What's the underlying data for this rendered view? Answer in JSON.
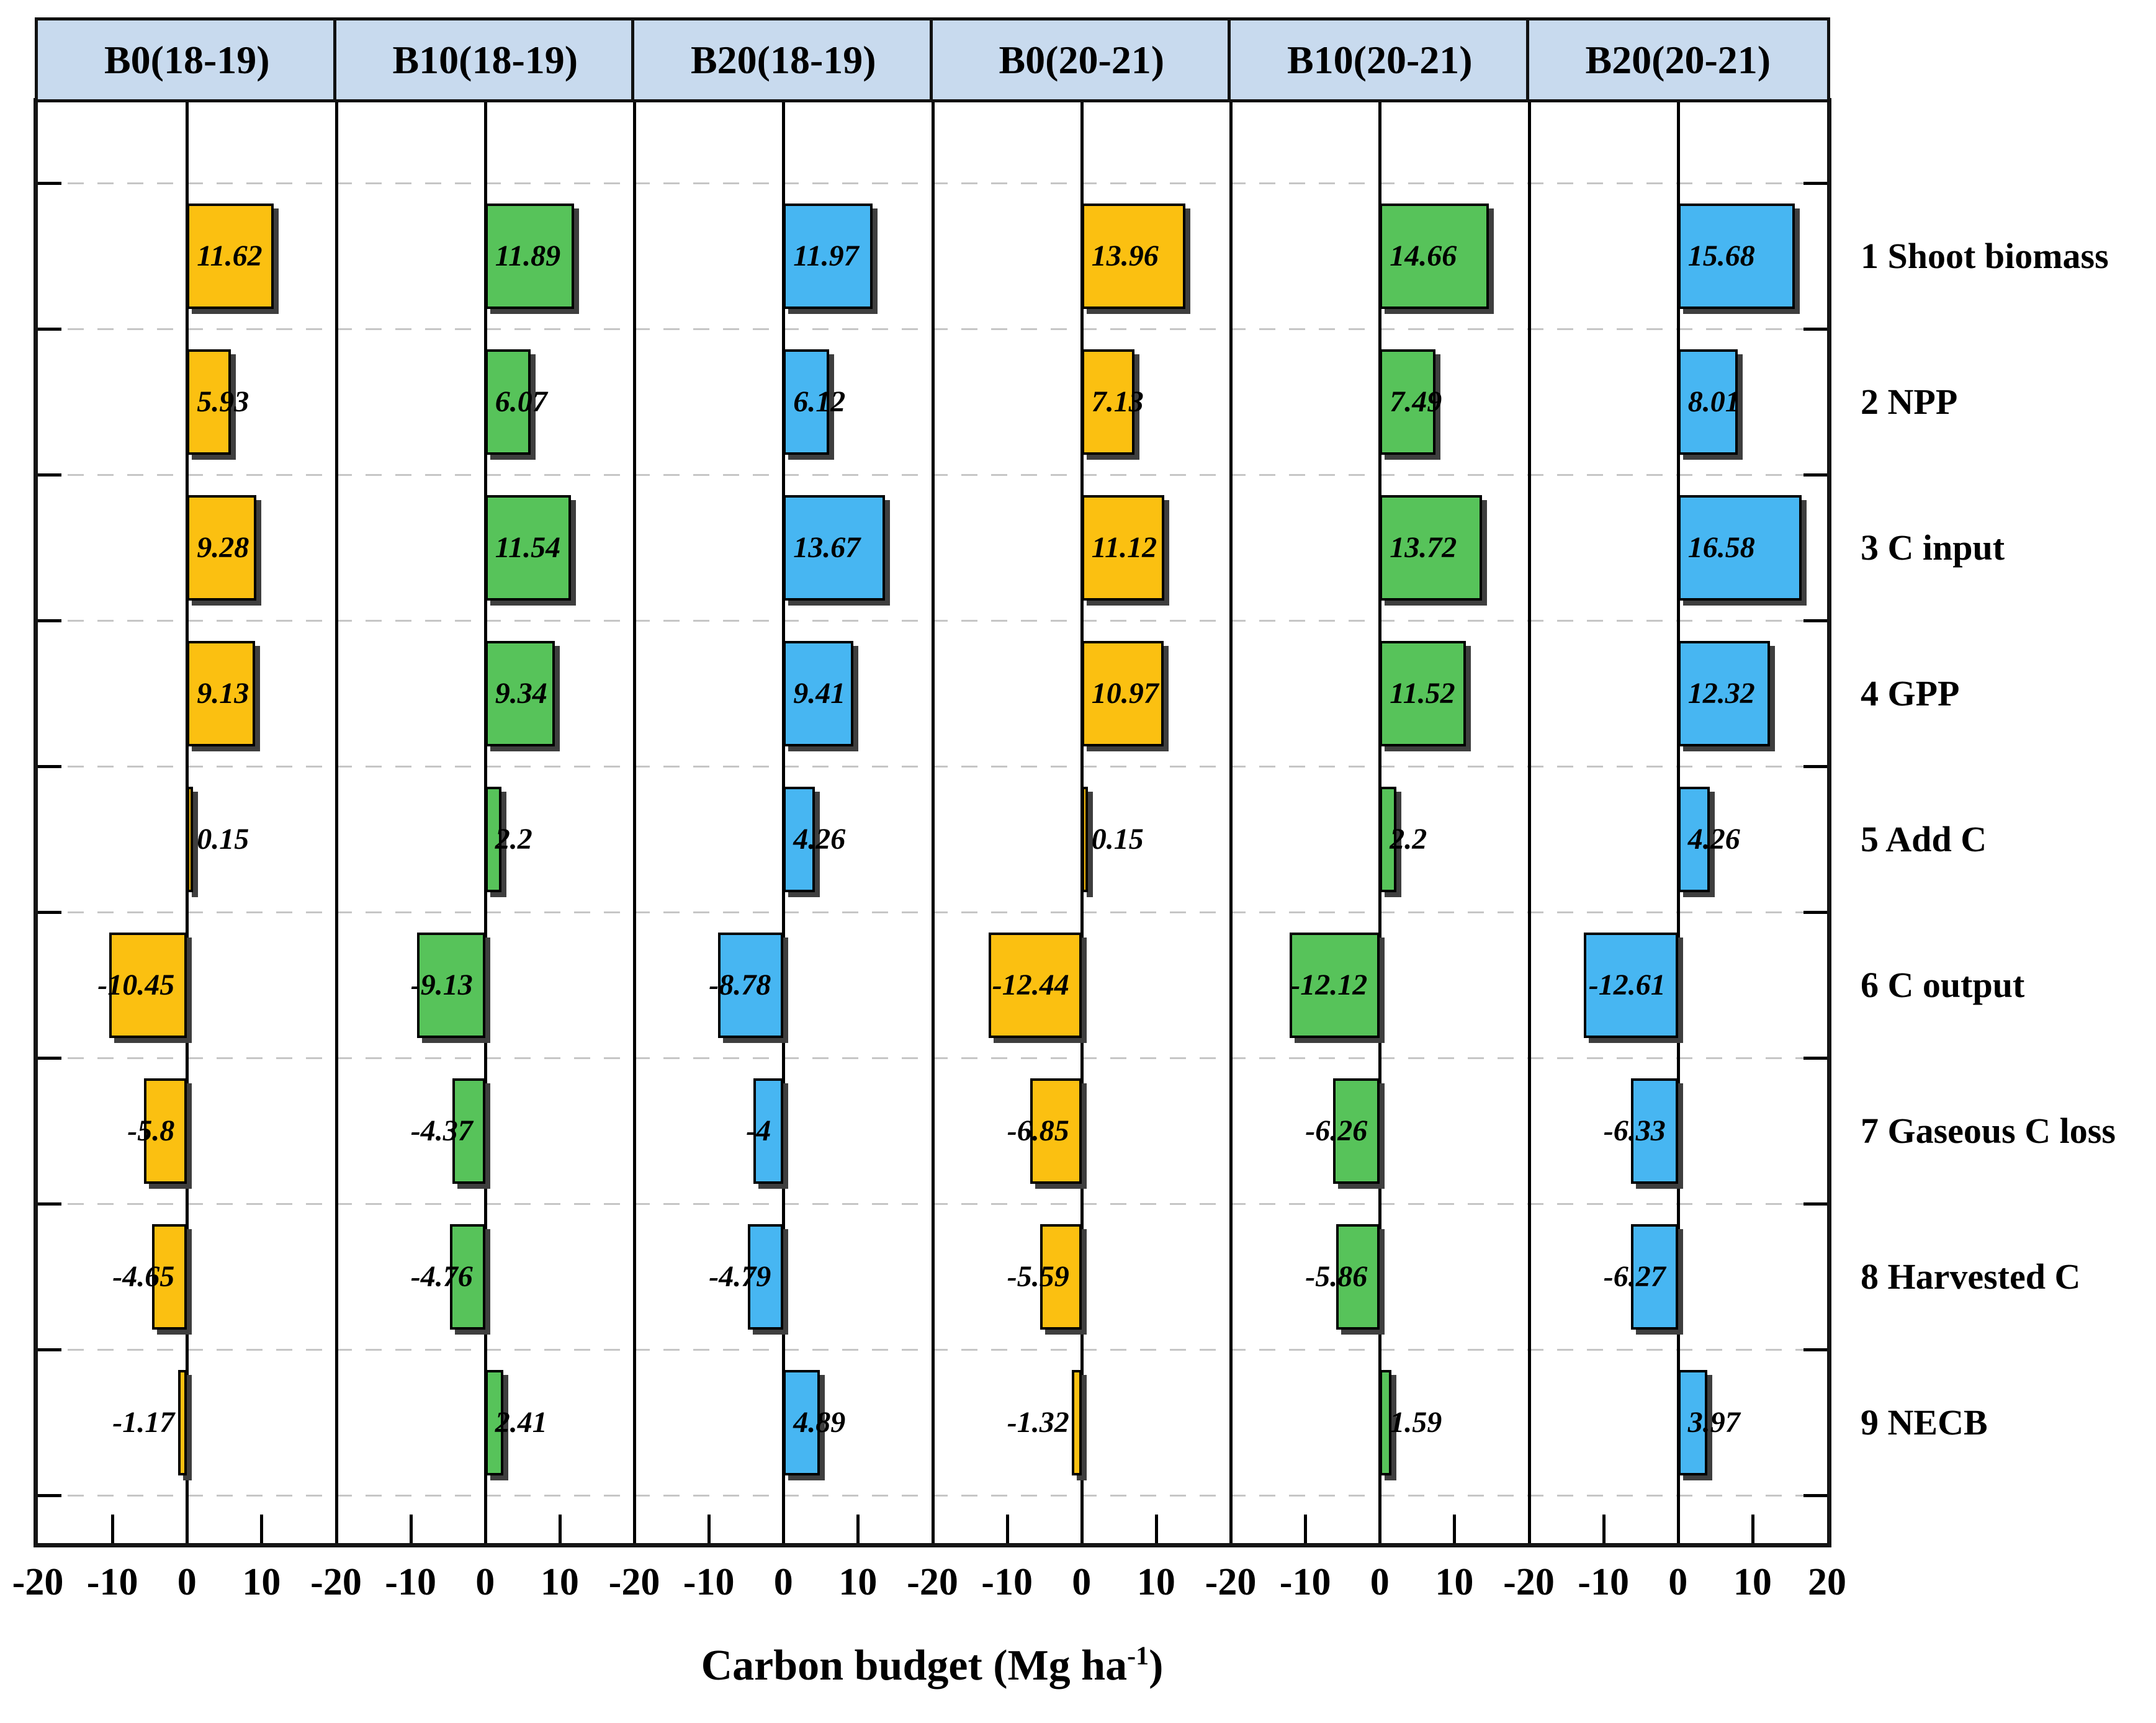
{
  "chart_data": {
    "type": "bar",
    "orientation": "horizontal",
    "title": "",
    "xlabel": {
      "text": "Carbon budget (Mg ha",
      "sup": "-1",
      "suffix": ")"
    },
    "xlim": [
      -20,
      20
    ],
    "x_tick_labels_per_panel": [
      "-20",
      "-10",
      "0",
      "10"
    ],
    "x_final_tick_label": "20",
    "grid": "dashed-horizontal-gridlines",
    "legend_position": "none",
    "categories": [
      "1 Shoot biomass",
      "2 NPP",
      "3 C input",
      "4 GPP",
      "5 Add C",
      "6 C output",
      "7 Gaseous C loss",
      "8 Harvested C",
      "9 NECB"
    ],
    "series": [
      {
        "name": "B0(18-19)",
        "color": "#FBC011",
        "values": [
          11.62,
          5.93,
          9.28,
          9.13,
          0.15,
          -10.45,
          -5.8,
          -4.65,
          -1.17
        ]
      },
      {
        "name": "B10(18-19)",
        "color": "#57C35A",
        "values": [
          11.89,
          6.07,
          11.54,
          9.34,
          2.2,
          -9.13,
          -4.37,
          -4.76,
          2.41
        ]
      },
      {
        "name": "B20(18-19)",
        "color": "#47B6F2",
        "values": [
          11.97,
          6.12,
          13.67,
          9.41,
          4.26,
          -8.78,
          -4,
          -4.79,
          4.89
        ]
      },
      {
        "name": "B0(20-21)",
        "color": "#FBC011",
        "values": [
          13.96,
          7.13,
          11.12,
          10.97,
          0.15,
          -12.44,
          -6.85,
          -5.59,
          -1.32
        ]
      },
      {
        "name": "B10(20-21)",
        "color": "#57C35A",
        "values": [
          14.66,
          7.49,
          13.72,
          11.52,
          2.2,
          -12.12,
          -6.26,
          -5.86,
          1.59
        ]
      },
      {
        "name": "B20(20-21)",
        "color": "#47B6F2",
        "values": [
          15.68,
          8.01,
          16.58,
          12.32,
          4.26,
          -12.61,
          -6.33,
          -6.27,
          3.97
        ]
      }
    ],
    "colors": {
      "header_background": "#C8DAEE",
      "bar_border": "#000000",
      "bar_shadow": "#3E3E3E",
      "gridline": "#C6C6C6",
      "axis": "#151515"
    }
  }
}
